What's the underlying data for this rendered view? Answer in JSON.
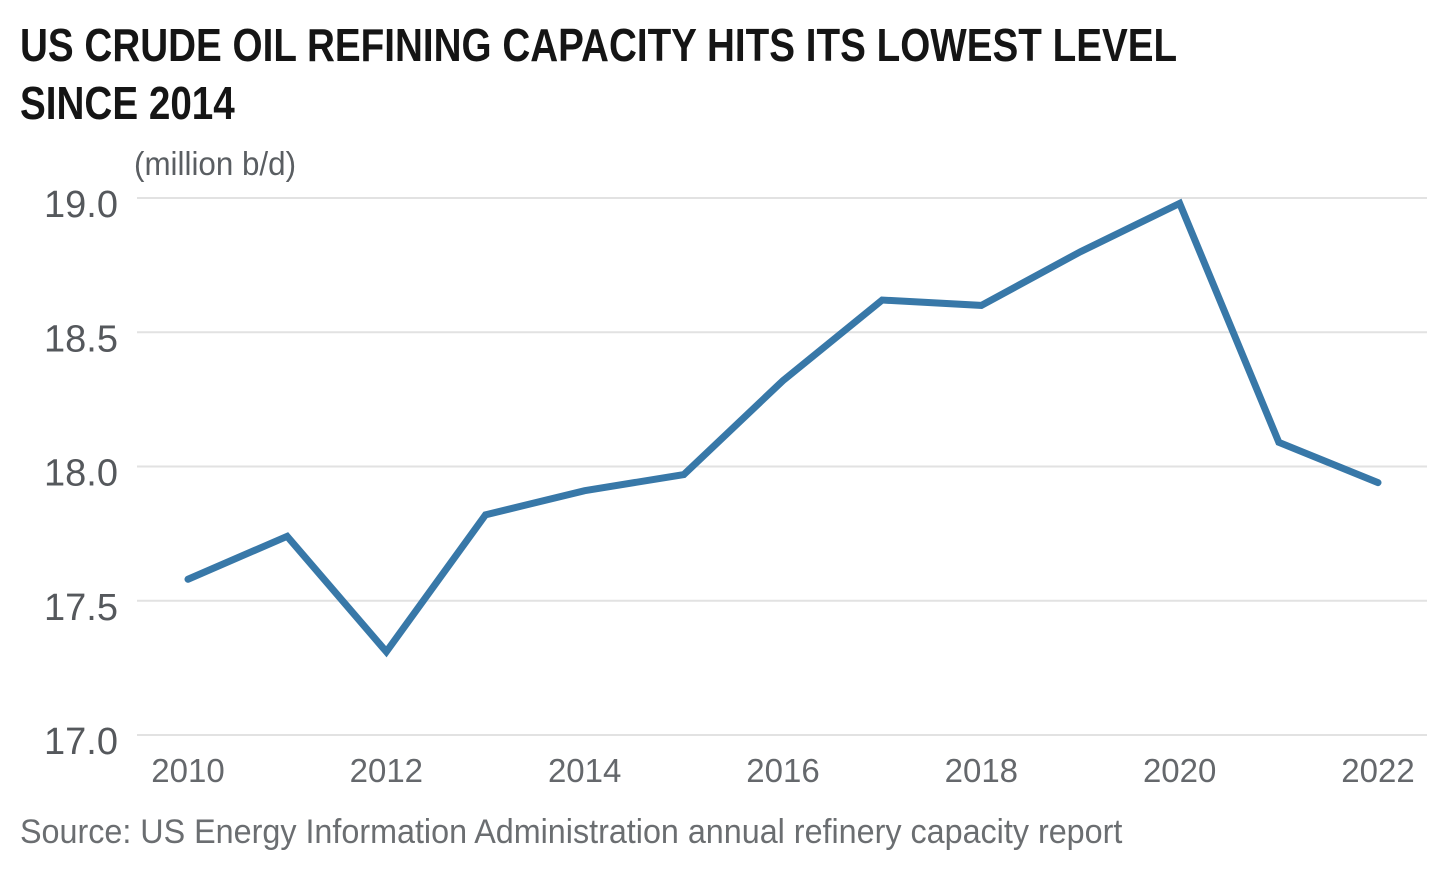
{
  "header": {
    "title_line1": "US CRUDE OIL REFINING CAPACITY HITS ITS LOWEST LEVEL",
    "title_line2": "SINCE 2014"
  },
  "chart_data": {
    "type": "line",
    "title": "US CRUDE OIL REFINING CAPACITY HITS ITS LOWEST LEVEL SINCE 2014",
    "unit_label": "(million b/d)",
    "x": [
      2010,
      2011,
      2012,
      2013,
      2014,
      2015,
      2016,
      2017,
      2018,
      2019,
      2020,
      2021,
      2022
    ],
    "series": [
      {
        "name": "US crude oil refining capacity (million b/d)",
        "values": [
          17.58,
          17.74,
          17.31,
          17.82,
          17.91,
          17.97,
          18.32,
          18.62,
          18.6,
          18.8,
          18.98,
          18.09,
          17.94
        ]
      }
    ],
    "xlabel": "",
    "ylabel": "(million b/d)",
    "ylim": [
      17.0,
      19.0
    ],
    "yticks": [
      19.0,
      18.5,
      18.0,
      17.5,
      17.0
    ],
    "ytick_labels": [
      "19.0",
      "18.5",
      "18.0",
      "17.5",
      "17.0"
    ],
    "xticks": [
      2010,
      2012,
      2014,
      2016,
      2018,
      2020,
      2022
    ],
    "grid": "horizontal-only",
    "legend": "none",
    "line_color": "#3878A8",
    "gridline_color": "#E2E2E2"
  },
  "source": {
    "text": "Source: US Energy Information Administration annual refinery capacity report"
  },
  "colors": {
    "background": "#FFFFFF",
    "title_text": "#151515",
    "axis_label_text": "#55585C",
    "tick_label_text": "#65686C",
    "source_text": "#6B6E71",
    "accent_line": "#3878A8",
    "gridline": "#E2E2E2"
  }
}
